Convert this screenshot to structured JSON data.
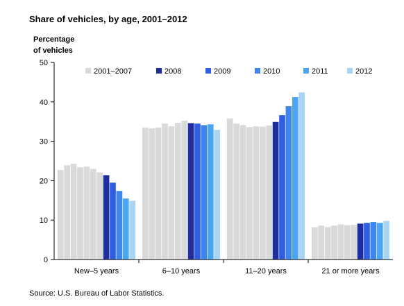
{
  "chart_data": {
    "type": "bar",
    "title": "Share of vehicles, by age, 2001–2012",
    "ylabel_line1": "Percentage",
    "ylabel_line2": "of vehicles",
    "xlabel": "",
    "ylim": [
      0,
      50
    ],
    "yticks": [
      "0",
      "10",
      "20",
      "30",
      "40",
      "50"
    ],
    "grid": false,
    "legend_position": "top",
    "categories": [
      "New–5 years",
      "6–10 years",
      "11–20 years",
      "21 or more years"
    ],
    "legend": [
      {
        "name": "2001–2007",
        "color": "#d9d9d9"
      },
      {
        "name": "2008",
        "color": "#1f2e9e"
      },
      {
        "name": "2009",
        "color": "#2f5fe0"
      },
      {
        "name": "2010",
        "color": "#3f86ec"
      },
      {
        "name": "2011",
        "color": "#4aa6f3"
      },
      {
        "name": "2012",
        "color": "#a9d4f4"
      }
    ],
    "series": [
      {
        "year": "2001",
        "color": "#d9d9d9",
        "values": [
          22.7,
          33.5,
          35.8,
          8.2
        ]
      },
      {
        "year": "2002",
        "color": "#d9d9d9",
        "values": [
          23.9,
          33.3,
          34.5,
          8.6
        ]
      },
      {
        "year": "2003",
        "color": "#d9d9d9",
        "values": [
          24.3,
          33.5,
          34.1,
          8.2
        ]
      },
      {
        "year": "2004",
        "color": "#d9d9d9",
        "values": [
          23.4,
          34.5,
          33.6,
          8.6
        ]
      },
      {
        "year": "2005",
        "color": "#d9d9d9",
        "values": [
          23.6,
          33.8,
          33.8,
          8.9
        ]
      },
      {
        "year": "2006",
        "color": "#d9d9d9",
        "values": [
          23.0,
          34.7,
          33.7,
          8.7
        ]
      },
      {
        "year": "2007",
        "color": "#d9d9d9",
        "values": [
          22.1,
          35.2,
          34.0,
          8.8
        ]
      },
      {
        "year": "2008",
        "color": "#1f2e9e",
        "values": [
          21.4,
          34.6,
          34.9,
          9.1
        ]
      },
      {
        "year": "2009",
        "color": "#2f5fe0",
        "values": [
          19.5,
          34.5,
          36.6,
          9.3
        ]
      },
      {
        "year": "2010",
        "color": "#3f86ec",
        "values": [
          17.4,
          34.1,
          38.9,
          9.5
        ]
      },
      {
        "year": "2011",
        "color": "#4aa6f3",
        "values": [
          15.5,
          34.3,
          41.2,
          9.3
        ]
      },
      {
        "year": "2012",
        "color": "#a9d4f4",
        "values": [
          14.9,
          32.9,
          42.4,
          9.8
        ]
      }
    ],
    "source": "Source: U.S. Bureau of Labor Statistics."
  }
}
